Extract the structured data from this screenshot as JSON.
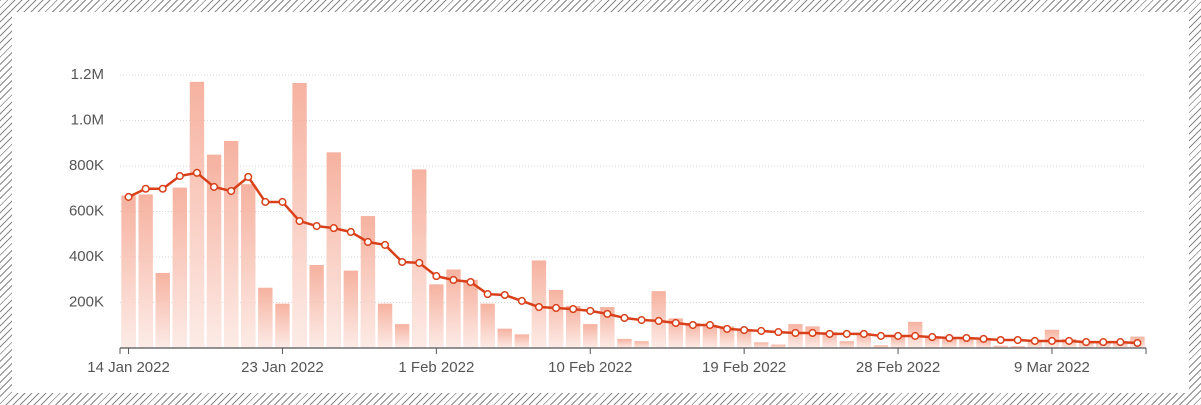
{
  "chart_data": {
    "type": "bar",
    "categories": [
      "14 Jan 2022",
      null,
      null,
      null,
      null,
      null,
      null,
      null,
      null,
      "23 Jan 2022",
      null,
      null,
      null,
      null,
      null,
      null,
      null,
      null,
      "1 Feb 2022",
      null,
      null,
      null,
      null,
      null,
      null,
      null,
      null,
      "10 Feb 2022",
      null,
      null,
      null,
      null,
      null,
      null,
      null,
      null,
      "19 Feb 2022",
      null,
      null,
      null,
      null,
      null,
      null,
      null,
      null,
      "28 Feb 2022",
      null,
      null,
      null,
      null,
      null,
      null,
      null,
      null,
      "9 Mar 2022",
      null,
      null,
      null,
      null,
      null
    ],
    "series": [
      {
        "type": "bar",
        "color": "#f4a48f",
        "values": [
          670000,
          675000,
          330000,
          705000,
          1170000,
          850000,
          910000,
          720000,
          265000,
          195000,
          1165000,
          365000,
          860000,
          340000,
          580000,
          195000,
          105000,
          785000,
          280000,
          345000,
          300000,
          195000,
          85000,
          60000,
          385000,
          255000,
          185000,
          105000,
          180000,
          40000,
          30000,
          250000,
          130000,
          110000,
          100000,
          95000,
          80000,
          25000,
          15000,
          105000,
          95000,
          70000,
          30000,
          65000,
          12000,
          50000,
          115000,
          50000,
          40000,
          45000,
          35000,
          10000,
          8000,
          35000,
          80000,
          40000,
          30000,
          25000,
          25000,
          50000
        ]
      },
      {
        "type": "line",
        "color": "#d9401a",
        "values": [
          664000,
          700000,
          700000,
          756000,
          770000,
          708000,
          690000,
          752000,
          642000,
          642000,
          558000,
          536000,
          527000,
          510000,
          466000,
          453000,
          378000,
          374000,
          316000,
          299000,
          290000,
          237000,
          233000,
          207000,
          180000,
          176000,
          171000,
          163000,
          150000,
          132000,
          123000,
          119000,
          110000,
          101000,
          101000,
          84000,
          79000,
          75000,
          70000,
          66000,
          66000,
          62000,
          62000,
          62000,
          53000,
          53000,
          53000,
          48000,
          44000,
          44000,
          40000,
          35000,
          35000,
          31000,
          31000,
          31000,
          26000,
          26000,
          26000,
          22000
        ]
      }
    ],
    "ylim": [
      0,
      1200000
    ],
    "yticks": [
      {
        "value": 200000,
        "label": "200K"
      },
      {
        "value": 400000,
        "label": "400K"
      },
      {
        "value": 600000,
        "label": "600K"
      },
      {
        "value": 800000,
        "label": "800K"
      },
      {
        "value": 1000000,
        "label": "1.0M"
      },
      {
        "value": 1200000,
        "label": "1.2M"
      }
    ],
    "grid": true
  }
}
